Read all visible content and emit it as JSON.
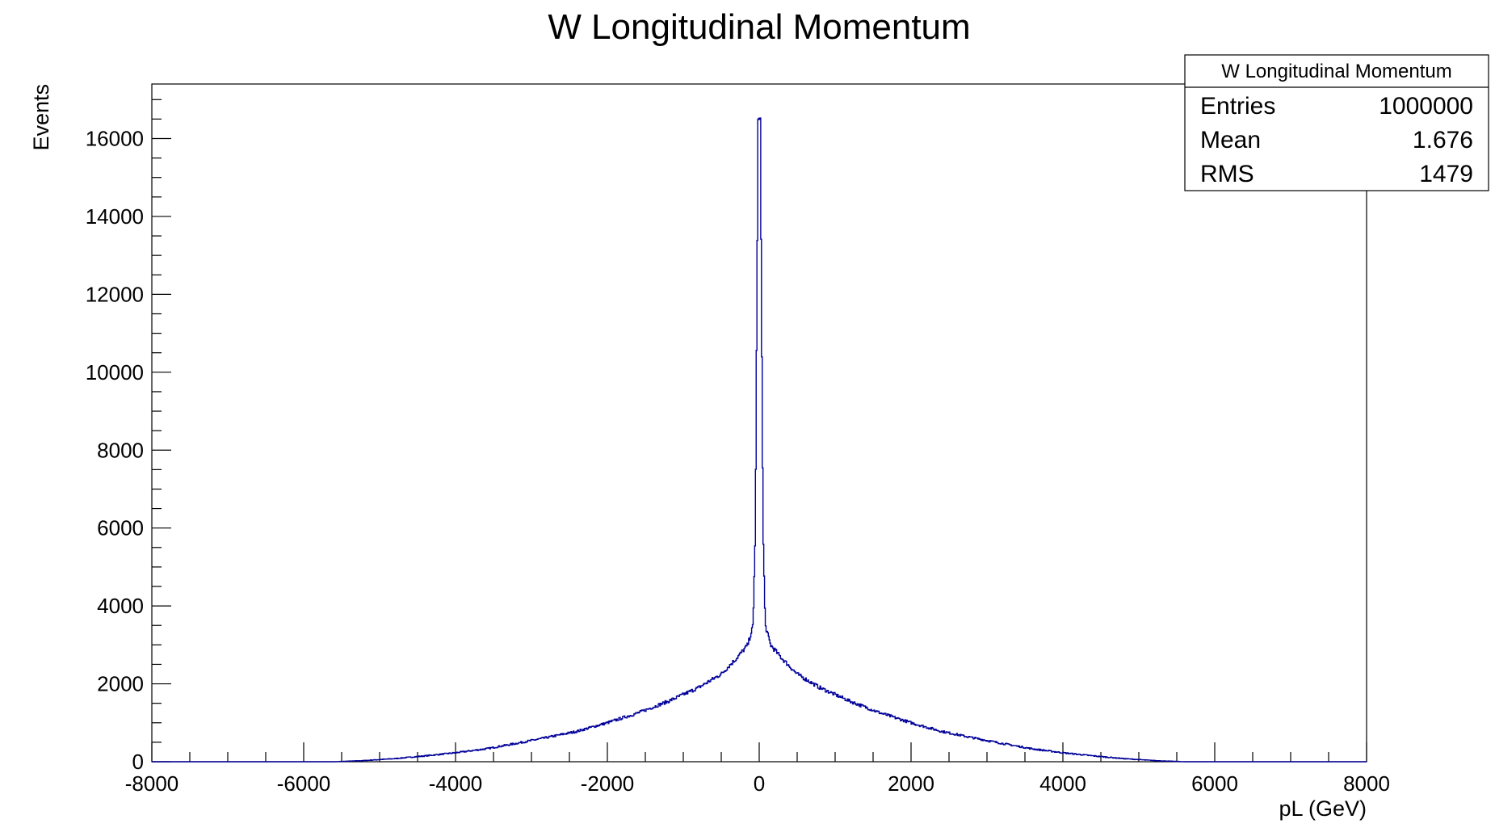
{
  "chart_data": {
    "type": "histogram",
    "title": "W Longitudinal Momentum",
    "xlabel": "pL (GeV)",
    "ylabel": "Events",
    "xlim": [
      -8000,
      8000
    ],
    "ylim": [
      0,
      17400
    ],
    "x_ticks": [
      -8000,
      -6000,
      -4000,
      -2000,
      0,
      2000,
      4000,
      6000,
      8000
    ],
    "y_ticks": [
      0,
      2000,
      4000,
      6000,
      8000,
      10000,
      12000,
      14000,
      16000
    ],
    "x_tick_labels": [
      "-8000",
      "-6000",
      "-4000",
      "-2000",
      "0",
      "2000",
      "4000",
      "6000",
      "8000"
    ],
    "y_tick_labels": [
      "0",
      "2000",
      "4000",
      "6000",
      "8000",
      "10000",
      "12000",
      "14000",
      "16000"
    ],
    "line_color": "#000099",
    "grid": false,
    "series": [
      {
        "x": [
          -5600,
          -5200,
          -4800,
          -4400,
          -4000,
          -3600,
          -3200,
          -2800,
          -2400,
          -2000,
          -1600,
          -1200,
          -800,
          -500,
          -300,
          -150,
          -80,
          -50,
          -30,
          -15,
          0,
          15,
          30,
          50,
          80,
          150,
          300,
          500,
          800,
          1200,
          1600,
          2000,
          2400,
          2800,
          3200,
          3600,
          4000,
          4400,
          4800,
          5200,
          5600
        ],
        "y": [
          0,
          30,
          80,
          150,
          230,
          330,
          470,
          620,
          780,
          1000,
          1250,
          1550,
          1900,
          2250,
          2650,
          3000,
          3500,
          6000,
          12000,
          16400,
          16500,
          16400,
          12000,
          6000,
          3500,
          3000,
          2650,
          2250,
          1900,
          1550,
          1250,
          1000,
          780,
          620,
          470,
          330,
          230,
          150,
          80,
          30,
          0
        ]
      }
    ],
    "stats": {
      "title": "W Longitudinal Momentum",
      "rows": [
        {
          "label": "Entries",
          "value": "1000000"
        },
        {
          "label": "Mean",
          "value": "1.676"
        },
        {
          "label": "RMS",
          "value": "1479"
        }
      ]
    }
  }
}
